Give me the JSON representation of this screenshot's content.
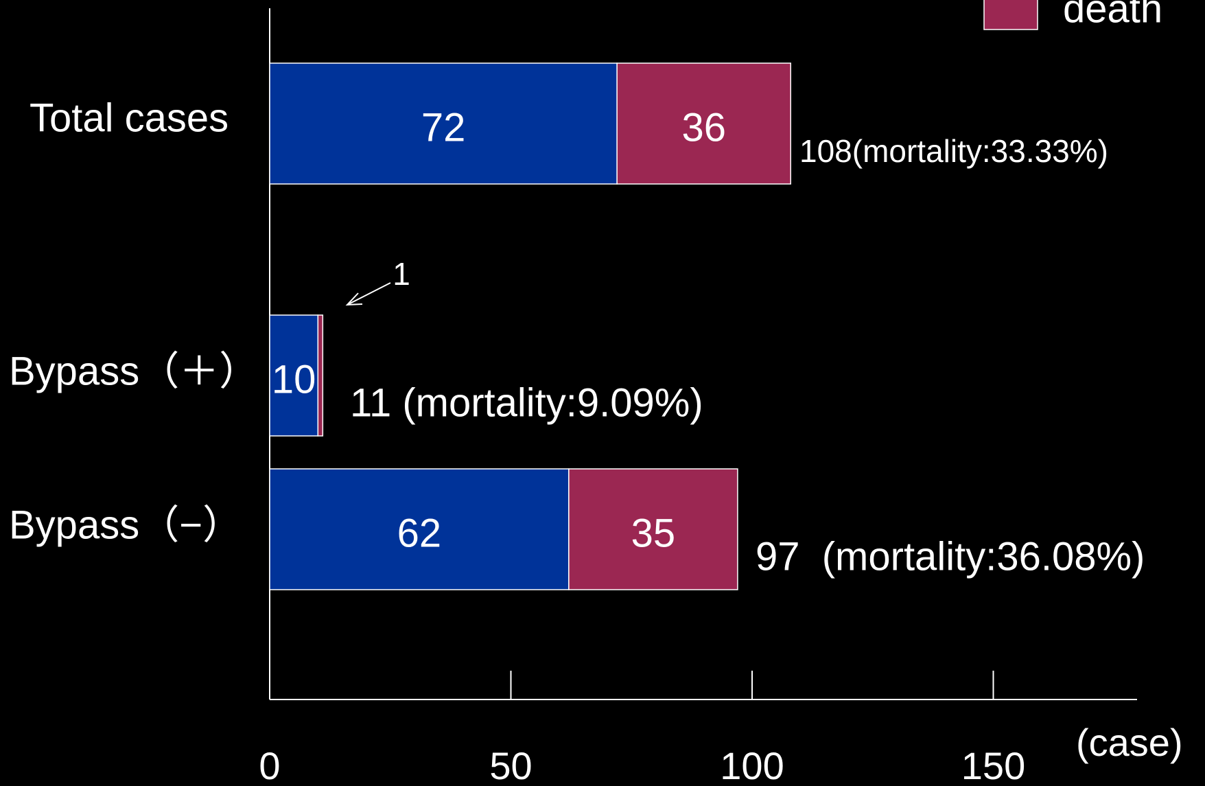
{
  "chart_data": {
    "type": "bar",
    "orientation": "horizontal",
    "stacked": true,
    "categories": [
      "Total cases",
      "Bypass（＋）",
      "Bypass（−）"
    ],
    "series": [
      {
        "color": "#003399",
        "values": [
          72,
          10,
          62
        ]
      },
      {
        "name": "death",
        "color": "#9b2752",
        "values": [
          36,
          1,
          35
        ]
      }
    ],
    "xlim": [
      0,
      180
    ],
    "xticks": [
      0,
      50,
      100,
      150
    ],
    "x_unit": "(case)",
    "annotations": [
      "108(mortality:33.33%)",
      "11 (mortality:9.09%)",
      "97  (mortality:36.08%)"
    ],
    "legend": "top-right"
  }
}
